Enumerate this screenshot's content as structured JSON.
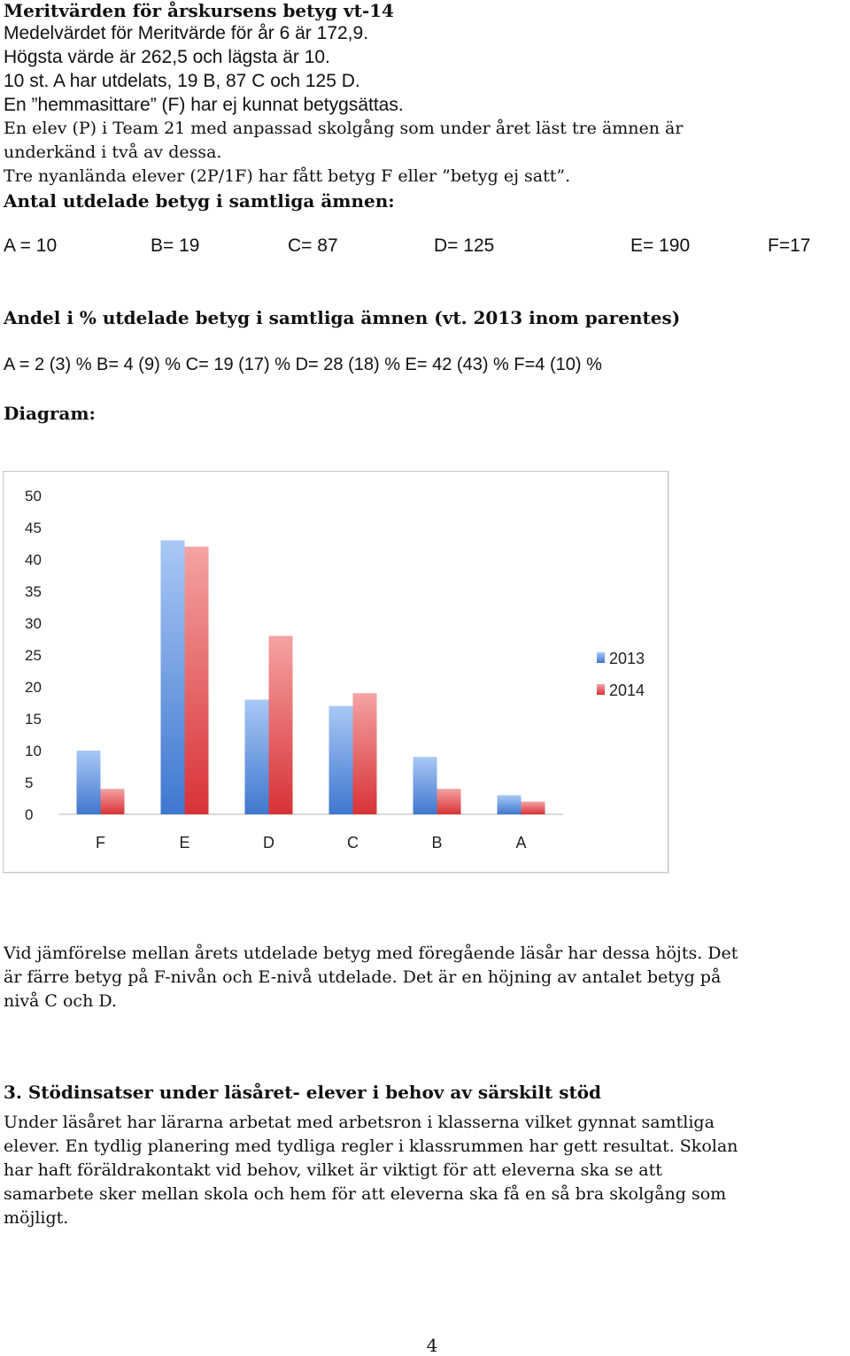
{
  "intro": {
    "heading": "Meritvärden för årskursens betyg vt-14",
    "lines": [
      "Medelvärdet för Meritvärde för år 6 är 172,9.",
      "Högsta värde är 262,5 och lägsta är 10.",
      "10 st. A har utdelats, 19 B, 87 C och 125 D.",
      "En ”hemmasittare” (F) har ej kunnat betygsättas.",
      "En elev (P) i Team 21 med anpassad skolgång som under året läst tre ämnen är",
      "underkänd i två av dessa.",
      "Tre nyanlända elever (2P/1F) har fått betyg F eller ”betyg ej satt”."
    ]
  },
  "counts": {
    "heading": "Antal utdelade betyg i samtliga ämnen:",
    "items": [
      "A = 10",
      "B= 19",
      "C= 87",
      "D= 125",
      "E= 190",
      "F=17"
    ]
  },
  "shares": {
    "heading": "Andel i % utdelade betyg i samtliga ämnen (vt. 2013 inom parentes)",
    "line": "A = 2 (3) % B= 4 (9) % C= 19 (17) % D= 28 (18) % E= 42 (43) % F=4 (10) %"
  },
  "diagram_heading": "Diagram:",
  "chart_data": {
    "type": "bar",
    "categories": [
      "F",
      "E",
      "D",
      "C",
      "B",
      "A"
    ],
    "series": [
      {
        "name": "2013",
        "values": [
          10,
          43,
          18,
          17,
          9,
          3
        ],
        "color": "#5b8fdb"
      },
      {
        "name": "2014",
        "values": [
          4,
          42,
          28,
          19,
          4,
          2
        ],
        "color": "#e0474a"
      }
    ],
    "ylim": [
      0,
      50
    ],
    "yticks": [
      0,
      5,
      10,
      15,
      20,
      25,
      30,
      35,
      40,
      45,
      50
    ],
    "legend": "right",
    "grid": false,
    "title": "",
    "xlabel": "",
    "ylabel": ""
  },
  "comparison": {
    "lines": [
      "Vid jämförelse mellan årets utdelade betyg med föregående läsår har dessa höjts. Det",
      "är färre betyg på F-nivån och E-nivå utdelade. Det är en höjning av antalet betyg på",
      "nivå C och D."
    ]
  },
  "section3": {
    "heading": "3. Stödinsatser under läsåret- elever i behov av särskilt stöd",
    "lines": [
      "Under läsåret har lärarna arbetat med arbetsron i klasserna vilket gynnat samtliga",
      "elever. En tydlig planering med tydliga regler i klassrummen har gett resultat. Skolan",
      "har haft föräldrakontakt vid behov, vilket är viktigt för att eleverna ska se att",
      "samarbete sker mellan skola och hem för att eleverna ska få en så bra skolgång som",
      "möjligt."
    ]
  },
  "page_number": "4"
}
